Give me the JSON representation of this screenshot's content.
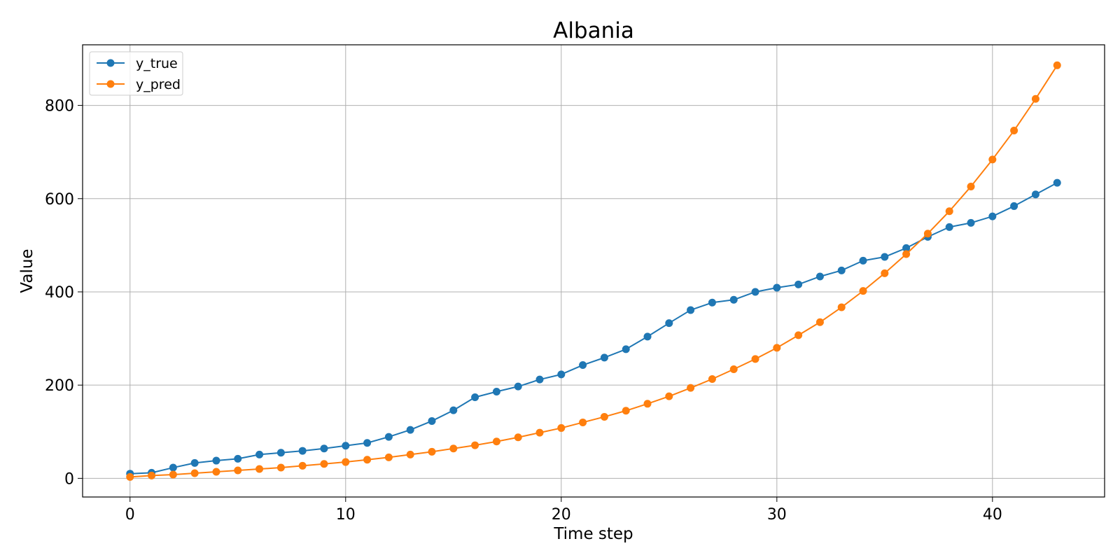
{
  "chart_data": {
    "type": "line",
    "title": "Albania",
    "xlabel": "Time step",
    "ylabel": "Value",
    "xlim": [
      -2.2,
      45.2
    ],
    "ylim": [
      -40,
      930
    ],
    "xticks": [
      0,
      10,
      20,
      30,
      40
    ],
    "yticks": [
      0,
      200,
      400,
      600,
      800
    ],
    "grid": true,
    "legend_position": "top-left",
    "x": [
      0,
      1,
      2,
      3,
      4,
      5,
      6,
      7,
      8,
      9,
      10,
      11,
      12,
      13,
      14,
      15,
      16,
      17,
      18,
      19,
      20,
      21,
      22,
      23,
      24,
      25,
      26,
      27,
      28,
      29,
      30,
      31,
      32,
      33,
      34,
      35,
      36,
      37,
      38,
      39,
      40,
      41,
      42,
      43
    ],
    "series": [
      {
        "name": "y_true",
        "color": "#1f77b4",
        "values": [
          10,
          12,
          23,
          33,
          38,
          42,
          51,
          55,
          59,
          64,
          70,
          76,
          89,
          104,
          123,
          146,
          174,
          186,
          197,
          212,
          223,
          243,
          259,
          277,
          304,
          333,
          361,
          377,
          383,
          400,
          409,
          416,
          433,
          446,
          467,
          475,
          494,
          518,
          539,
          548,
          562,
          584,
          609,
          634
        ]
      },
      {
        "name": "y_pred",
        "color": "#ff7f0e",
        "values": [
          3,
          6,
          8,
          11,
          14,
          17,
          20,
          23,
          27,
          31,
          35,
          40,
          45,
          51,
          57,
          64,
          71,
          79,
          88,
          98,
          108,
          120,
          132,
          145,
          160,
          176,
          194,
          213,
          234,
          256,
          280,
          307,
          335,
          367,
          402,
          440,
          481,
          525,
          573,
          626,
          684,
          746,
          814,
          886
        ]
      }
    ]
  }
}
